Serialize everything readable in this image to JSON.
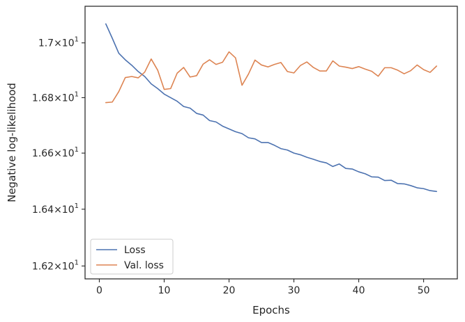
{
  "chart_data": {
    "type": "line",
    "xlabel": "Epochs",
    "ylabel": "Negative log-likelihood",
    "yscale": "log",
    "xlim": [
      -2.2,
      55.2
    ],
    "ylim": [
      16.155,
      17.135
    ],
    "x_ticks": [
      0,
      10,
      20,
      30,
      40,
      50
    ],
    "x_tick_labels": [
      "0",
      "10",
      "20",
      "30",
      "40",
      "50"
    ],
    "y_ticks": [
      16.2,
      16.4,
      16.6,
      16.8,
      17.0
    ],
    "y_tick_labels": [
      {
        "mantissa": "1.62",
        "exp": "1"
      },
      {
        "mantissa": "1.64",
        "exp": "1"
      },
      {
        "mantissa": "1.66",
        "exp": "1"
      },
      {
        "mantissa": "1.68",
        "exp": "1"
      },
      {
        "mantissa": "1.7",
        "exp": "1"
      }
    ],
    "grid": false,
    "legend_position": "lower-left",
    "x": [
      1,
      2,
      3,
      4,
      5,
      6,
      7,
      8,
      9,
      10,
      11,
      12,
      13,
      14,
      15,
      16,
      17,
      18,
      19,
      20,
      21,
      22,
      23,
      24,
      25,
      26,
      27,
      28,
      29,
      30,
      31,
      32,
      33,
      34,
      35,
      36,
      37,
      38,
      39,
      40,
      41,
      42,
      43,
      44,
      45,
      46,
      47,
      48,
      49,
      50,
      51,
      52
    ],
    "series": [
      {
        "name": "Loss",
        "color": "#4c72b0",
        "values": [
          17.07,
          17.017,
          16.962,
          16.938,
          16.918,
          16.895,
          16.877,
          16.85,
          16.833,
          16.813,
          16.8,
          16.787,
          16.768,
          16.762,
          16.743,
          16.737,
          16.717,
          16.712,
          16.697,
          16.687,
          16.677,
          16.67,
          16.655,
          16.651,
          16.638,
          16.638,
          16.628,
          16.616,
          16.611,
          16.6,
          16.594,
          16.585,
          16.578,
          16.57,
          16.565,
          16.552,
          16.561,
          16.545,
          16.543,
          16.533,
          16.526,
          16.515,
          16.514,
          16.502,
          16.503,
          16.491,
          16.49,
          16.484,
          16.476,
          16.473,
          16.466,
          16.463
        ]
      },
      {
        "name": "Val. loss",
        "color": "#dd8452",
        "values": [
          16.782,
          16.784,
          16.822,
          16.873,
          16.877,
          16.872,
          16.893,
          16.941,
          16.9,
          16.83,
          16.833,
          16.889,
          16.91,
          16.875,
          16.88,
          16.922,
          16.938,
          16.921,
          16.929,
          16.967,
          16.945,
          16.845,
          16.886,
          16.937,
          16.919,
          16.912,
          16.921,
          16.928,
          16.895,
          16.89,
          16.917,
          16.93,
          16.91,
          16.897,
          16.897,
          16.934,
          16.915,
          16.911,
          16.906,
          16.913,
          16.904,
          16.896,
          16.878,
          16.909,
          16.909,
          16.9,
          16.887,
          16.898,
          16.919,
          16.902,
          16.892,
          16.915
        ]
      }
    ]
  }
}
